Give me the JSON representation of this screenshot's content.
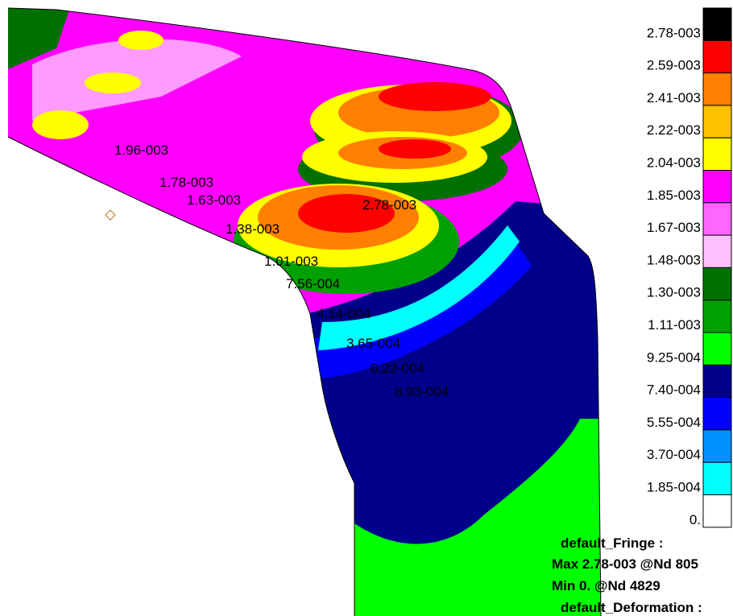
{
  "legend": {
    "levels": [
      {
        "label": "2.78-003",
        "color": "#000000"
      },
      {
        "label": "2.59-003",
        "color": "#ff0000"
      },
      {
        "label": "2.41-003",
        "color": "#ff8000"
      },
      {
        "label": "2.22-003",
        "color": "#ffc000"
      },
      {
        "label": "2.04-003",
        "color": "#ffff00"
      },
      {
        "label": "1.85-003",
        "color": "#ff00ff"
      },
      {
        "label": "1.67-003",
        "color": "#ff66ff"
      },
      {
        "label": "1.48-003",
        "color": "#ffc0ff"
      },
      {
        "label": "1.30-003",
        "color": "#007000"
      },
      {
        "label": "1.11-003",
        "color": "#00a000"
      },
      {
        "label": "9.25-004",
        "color": "#00ff00"
      },
      {
        "label": "7.40-004",
        "color": "#00008b"
      },
      {
        "label": "5.55-004",
        "color": "#0000ff"
      },
      {
        "label": "3.70-004",
        "color": "#0090ff"
      },
      {
        "label": "1.85-004",
        "color": "#00ffff"
      },
      {
        "label": "0.",
        "color": "#ffffff"
      }
    ]
  },
  "contour_labels": [
    "1.96-003",
    "1.78-003",
    "1.63-003",
    "2.78-003",
    "1.38-003",
    "1.01-003",
    "7.56-004",
    "4.14-004",
    "3.65-004",
    "6.22-004",
    "8.93-004"
  ],
  "info": [
    "default_Fringe :",
    "Max 2.78-003 @Nd 805",
    "Min 0. @Nd 4829",
    "default_Deformation :"
  ]
}
